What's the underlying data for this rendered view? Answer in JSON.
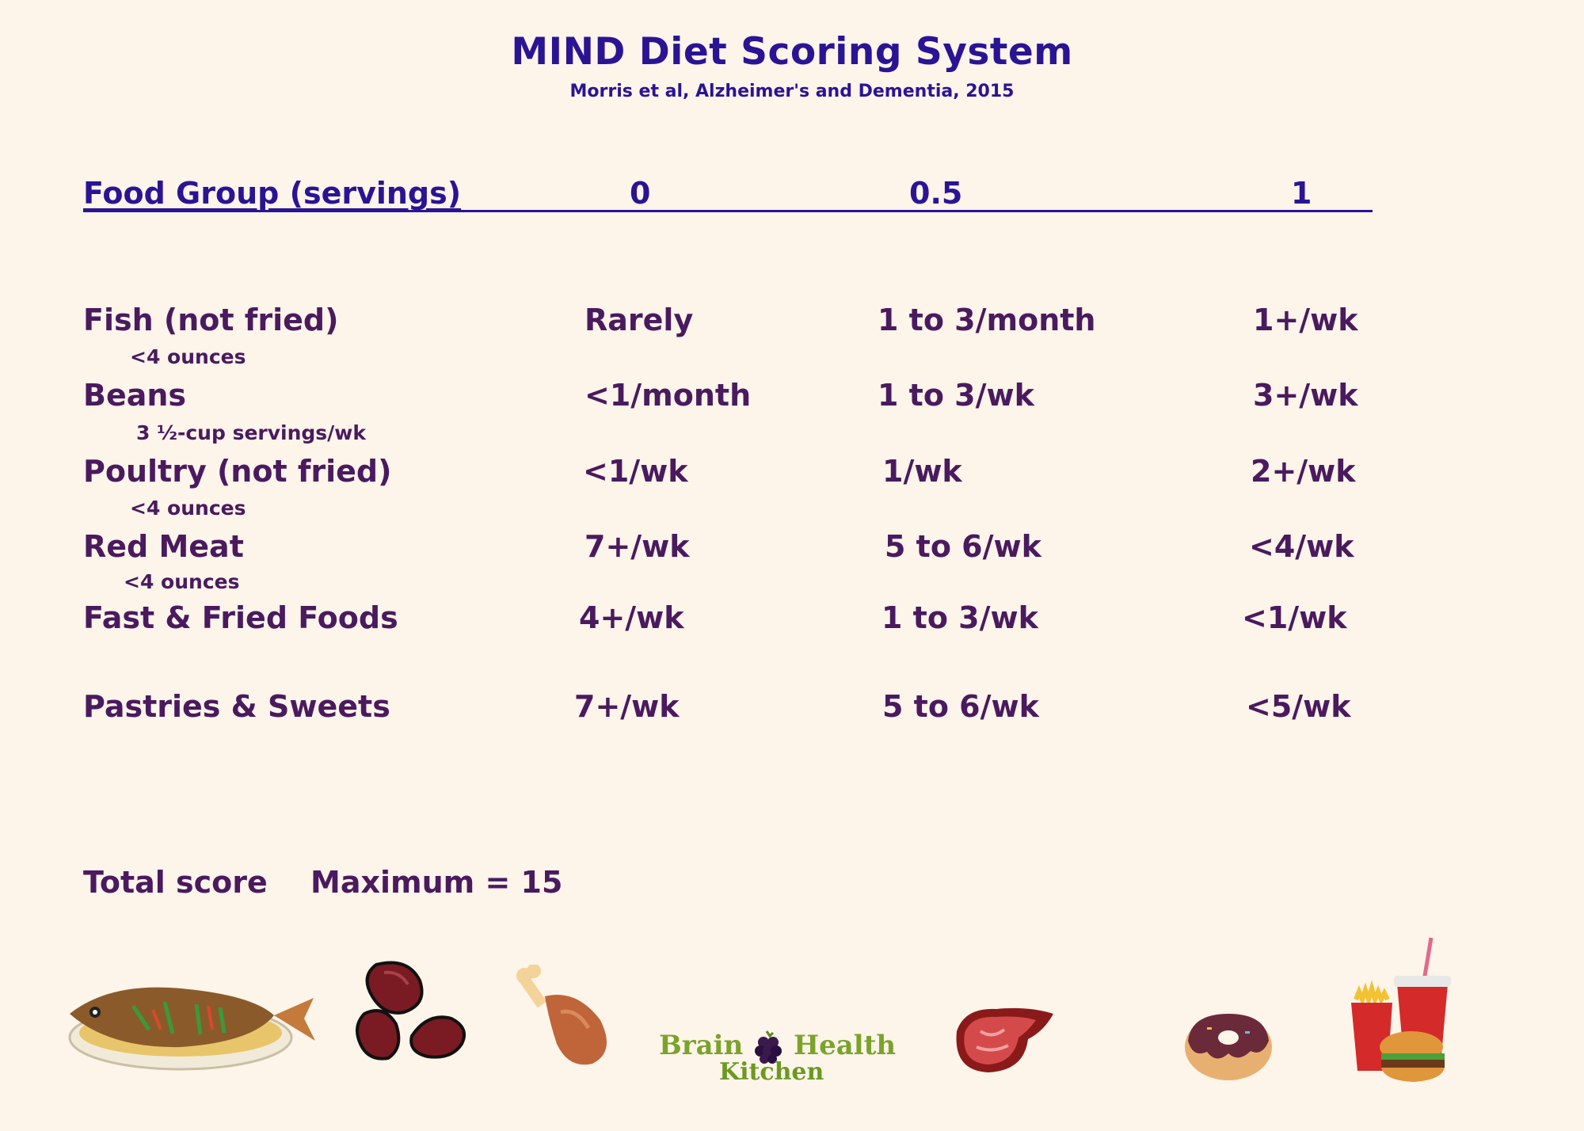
{
  "title": "MIND Diet Scoring System",
  "subtitle": "Morris et al, Alzheimer's and Dementia, 2015",
  "header": {
    "label": "Food Group (servings)",
    "score0": "0",
    "score05": "0.5",
    "score1": "1"
  },
  "rows": [
    {
      "name": "Fish (not fried)",
      "note": "<4 ounces",
      "s0": "Rarely",
      "s05": "1 to 3/month",
      "s1": "1+/wk"
    },
    {
      "name": "Beans",
      "note": "3 ½-cup servings/wk",
      "s0": "<1/month",
      "s05": "1 to 3/wk",
      "s1": "3+/wk"
    },
    {
      "name": "Poultry (not fried)",
      "note": "<4 ounces",
      "s0": "<1/wk",
      "s05": "1/wk",
      "s1": "2+/wk"
    },
    {
      "name": "Red Meat",
      "note": "<4 ounces",
      "s0": "7+/wk",
      "s05": "5 to 6/wk",
      "s1": "<4/wk"
    },
    {
      "name": "Fast & Fried Foods",
      "note": "",
      "s0": "4+/wk",
      "s05": "1 to 3/wk",
      "s1": "<1/wk"
    },
    {
      "name": "Pastries & Sweets",
      "note": "",
      "s0": "7+/wk",
      "s05": "5 to 6/wk",
      "s1": "<5/wk"
    }
  ],
  "total": {
    "label": "Total score",
    "maximum": "Maximum = 15"
  },
  "logo": {
    "line1_a": "Brain",
    "line1_b": "Health",
    "line2": "Kitchen"
  },
  "icons": [
    "fish-icon",
    "beans-icon",
    "poultry-icon",
    "brain-health-kitchen-logo",
    "red-meat-icon",
    "donut-icon",
    "fast-food-icon"
  ],
  "colors": {
    "background": "#fdf4ea",
    "heading": "#2a1494",
    "text": "#4a1a5e",
    "logo_green": "#7aa32b"
  }
}
